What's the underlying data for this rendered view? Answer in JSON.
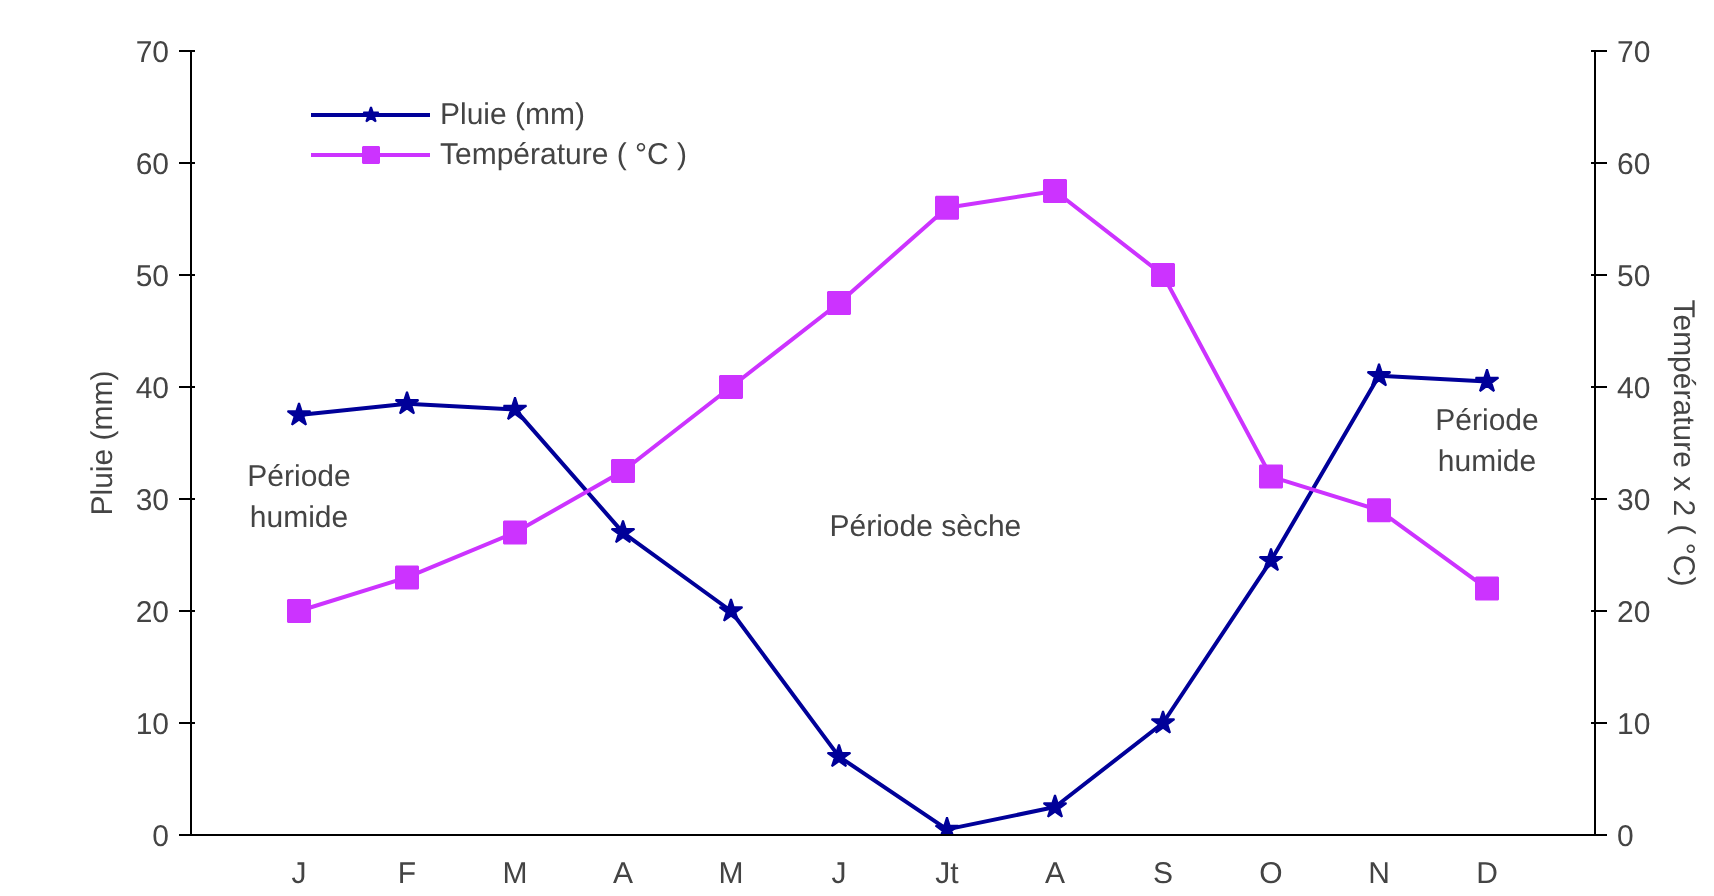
{
  "chart_data": {
    "type": "line",
    "categories": [
      "J",
      "F",
      "M",
      "A",
      "M",
      "J",
      "Jt",
      "A",
      "S",
      "O",
      "N",
      "D"
    ],
    "ylabel": "Pluie (mm)",
    "y2label": "Température x 2 ( °C)",
    "ylim": [
      0,
      70
    ],
    "yticks": [
      0,
      10,
      20,
      30,
      40,
      50,
      60,
      70
    ],
    "y2lim": [
      0,
      70
    ],
    "y2ticks": [
      0,
      10,
      20,
      30,
      40,
      50,
      60,
      70
    ],
    "grid": false,
    "legend": "top left",
    "line_style": "solid",
    "annotations": [
      "Période\nhumide",
      "Période sèche",
      "Période\nhumide"
    ],
    "series": [
      {
        "name": "Pluie (mm)",
        "color": "#000099",
        "marker": "star",
        "values": [
          37.5,
          38.5,
          38,
          27,
          20,
          7,
          0.5,
          2.5,
          10,
          24.5,
          41,
          40.5
        ]
      },
      {
        "name": "Température ( °C )",
        "color": "#cc33ff",
        "marker": "square",
        "values": [
          20,
          23,
          27,
          32.5,
          40,
          47.5,
          56,
          57.5,
          50,
          32,
          29,
          22
        ]
      }
    ]
  }
}
